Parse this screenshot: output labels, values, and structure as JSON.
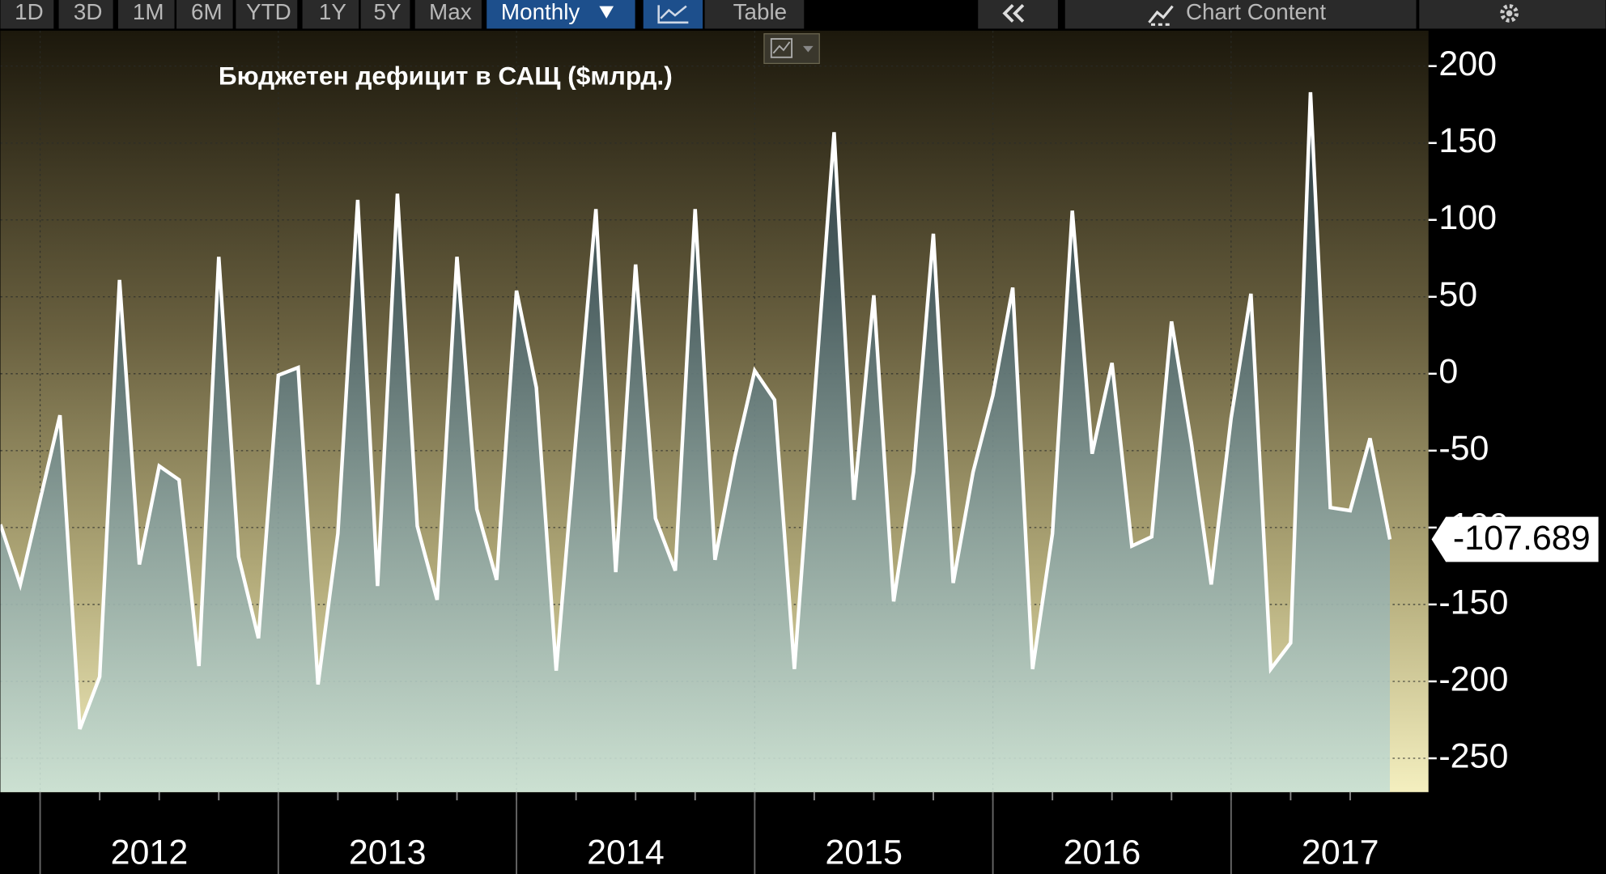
{
  "toolbar": {
    "ranges": [
      "1D",
      "3D",
      "1M",
      "6M",
      "YTD",
      "1Y",
      "5Y",
      "Max"
    ],
    "frequency": "Monthly",
    "table": "Table",
    "chart_content": "Chart Content"
  },
  "chart_data": {
    "type": "line",
    "title": "Бюджетен дефицит в САЩ ($млрд.)",
    "categories": [
      null,
      null,
      null,
      null,
      null,
      null,
      null,
      "2012",
      null,
      null,
      null,
      null,
      null,
      null,
      null,
      null,
      null,
      null,
      null,
      "2013",
      null,
      null,
      null,
      null,
      null,
      null,
      null,
      null,
      null,
      null,
      null,
      "2014",
      null,
      null,
      null,
      null,
      null,
      null,
      null,
      null,
      null,
      null,
      null,
      "2015",
      null,
      null,
      null,
      null,
      null,
      null,
      null,
      null,
      null,
      null,
      null,
      "2016",
      null,
      null,
      null,
      null,
      null,
      null,
      null,
      null,
      null,
      null,
      null,
      "2017",
      null,
      null,
      null
    ],
    "values": [
      -98,
      -137,
      -82,
      -27,
      -231,
      -197,
      61,
      -124,
      -60,
      -69,
      -190,
      76,
      -119,
      -172,
      -1,
      4,
      -202,
      -104,
      113,
      -138,
      117,
      -99,
      -147,
      76,
      -88,
      -134,
      54,
      -9,
      -193,
      -41,
      107,
      -129,
      71,
      -94,
      -128,
      107,
      -121,
      -54,
      2,
      -17,
      -192,
      -18,
      157,
      -82,
      51,
      -148,
      -64,
      91,
      -136,
      -64,
      -14,
      56,
      -192,
      -104,
      106,
      -52,
      7,
      -112,
      -106,
      34,
      -45,
      -137,
      -29,
      52,
      -192,
      -175,
      183,
      -87,
      -89,
      -42,
      -107.689
    ],
    "color": "#ffffff",
    "ylim": [
      -272,
      223
    ],
    "yticks": [
      200,
      150,
      100,
      50,
      0,
      -50,
      -100,
      -150,
      -200,
      -250
    ],
    "grid": true
  }
}
